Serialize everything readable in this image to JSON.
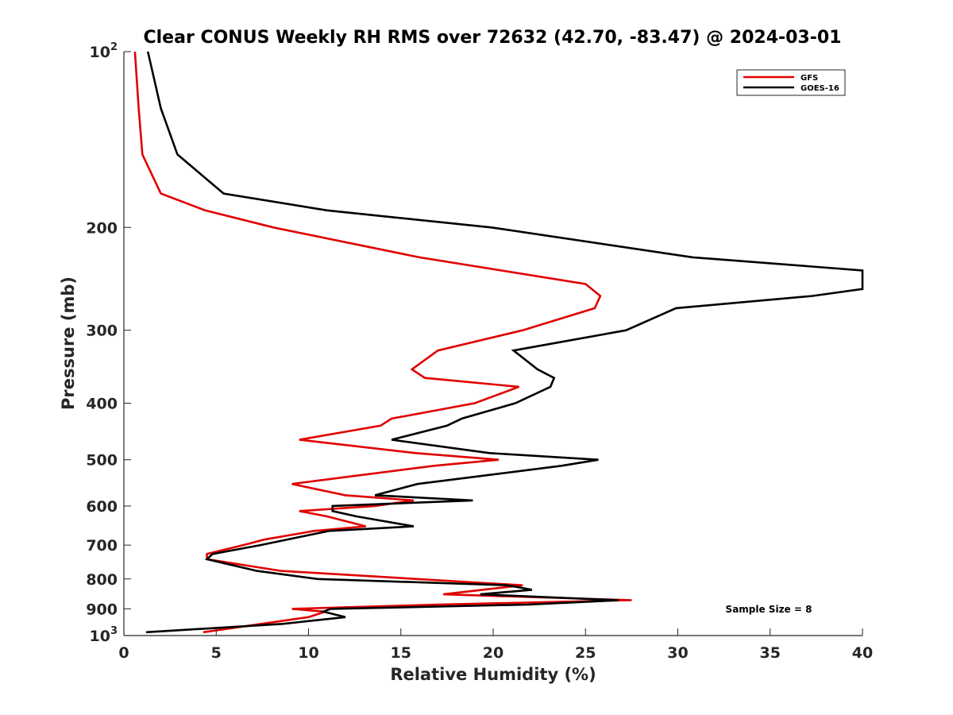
{
  "chart_data": {
    "type": "line",
    "title": "Clear CONUS Weekly RH RMS over 72632 (42.70, -83.47) @ 2024-03-01",
    "xlabel": "Relative Humidity (%)",
    "ylabel": "Pressure (mb)",
    "xlim": [
      0,
      40
    ],
    "ylim": [
      100,
      1000
    ],
    "yscale": "log",
    "y_reversed": true,
    "x_ticks": [
      0,
      5,
      10,
      15,
      20,
      25,
      30,
      35,
      40
    ],
    "x_tick_labels": [
      "0",
      "5",
      "10",
      "15",
      "20",
      "25",
      "30",
      "35",
      "40"
    ],
    "y_ticks": [
      100,
      200,
      300,
      400,
      500,
      600,
      700,
      800,
      900,
      1000
    ],
    "y_tick_labels": [
      {
        "base": "10",
        "exp": "2"
      },
      {
        "base": "200",
        "exp": ""
      },
      {
        "base": "300",
        "exp": ""
      },
      {
        "base": "400",
        "exp": ""
      },
      {
        "base": "500",
        "exp": ""
      },
      {
        "base": "600",
        "exp": ""
      },
      {
        "base": "700",
        "exp": ""
      },
      {
        "base": "800",
        "exp": ""
      },
      {
        "base": "900",
        "exp": ""
      },
      {
        "base": "10",
        "exp": "3"
      }
    ],
    "grid": false,
    "legend_position": "top-right",
    "annotation": "Sample Size = 8",
    "series": [
      {
        "name": "GFS",
        "color": "#e00000",
        "points": [
          [
            0.6,
            100
          ],
          [
            0.8,
            125
          ],
          [
            1.0,
            150
          ],
          [
            2.0,
            175
          ],
          [
            4.4,
            187
          ],
          [
            8.1,
            200
          ],
          [
            16.0,
            225
          ],
          [
            25.0,
            250
          ],
          [
            25.8,
            262
          ],
          [
            25.5,
            275
          ],
          [
            21.6,
            300
          ],
          [
            17.0,
            325
          ],
          [
            15.6,
            350
          ],
          [
            16.3,
            362
          ],
          [
            21.4,
            375
          ],
          [
            19.0,
            400
          ],
          [
            14.5,
            425
          ],
          [
            13.9,
            437
          ],
          [
            9.5,
            462
          ],
          [
            15.8,
            487
          ],
          [
            20.3,
            500
          ],
          [
            16.8,
            512
          ],
          [
            9.1,
            550
          ],
          [
            12.0,
            575
          ],
          [
            15.7,
            587
          ],
          [
            13.6,
            600
          ],
          [
            9.5,
            612
          ],
          [
            11.0,
            625
          ],
          [
            13.1,
            650
          ],
          [
            10.3,
            662
          ],
          [
            7.6,
            685
          ],
          [
            6.7,
            697
          ],
          [
            4.5,
            725
          ],
          [
            4.5,
            740
          ],
          [
            8.5,
            775
          ],
          [
            21.6,
            820
          ],
          [
            17.3,
            850
          ],
          [
            27.5,
            870
          ],
          [
            17.0,
            885
          ],
          [
            9.1,
            900
          ],
          [
            10.9,
            910
          ],
          [
            10.0,
            930
          ],
          [
            4.3,
            987
          ]
        ]
      },
      {
        "name": "GOES-16",
        "color": "#000000",
        "points": [
          [
            1.3,
            100
          ],
          [
            2.0,
            125
          ],
          [
            2.9,
            150
          ],
          [
            5.4,
            175
          ],
          [
            11.0,
            187
          ],
          [
            19.9,
            200
          ],
          [
            30.8,
            225
          ],
          [
            40.0,
            237
          ],
          [
            40.0,
            255
          ],
          [
            37.3,
            262
          ],
          [
            29.9,
            275
          ],
          [
            27.2,
            300
          ],
          [
            21.1,
            325
          ],
          [
            22.4,
            350
          ],
          [
            23.3,
            362
          ],
          [
            23.1,
            375
          ],
          [
            21.2,
            400
          ],
          [
            18.3,
            425
          ],
          [
            17.5,
            437
          ],
          [
            14.5,
            462
          ],
          [
            19.8,
            487
          ],
          [
            25.7,
            500
          ],
          [
            23.7,
            512
          ],
          [
            15.9,
            550
          ],
          [
            13.6,
            575
          ],
          [
            18.9,
            587
          ],
          [
            11.3,
            600
          ],
          [
            11.3,
            612
          ],
          [
            12.6,
            625
          ],
          [
            15.7,
            650
          ],
          [
            11.1,
            662
          ],
          [
            7.4,
            700
          ],
          [
            4.8,
            725
          ],
          [
            4.5,
            740
          ],
          [
            7.2,
            775
          ],
          [
            10.5,
            800
          ],
          [
            20.8,
            820
          ],
          [
            22.1,
            835
          ],
          [
            19.3,
            850
          ],
          [
            26.8,
            870
          ],
          [
            21.9,
            885
          ],
          [
            11.2,
            900
          ],
          [
            10.8,
            910
          ],
          [
            12.0,
            930
          ],
          [
            8.6,
            955
          ],
          [
            1.2,
            987
          ]
        ]
      }
    ]
  }
}
